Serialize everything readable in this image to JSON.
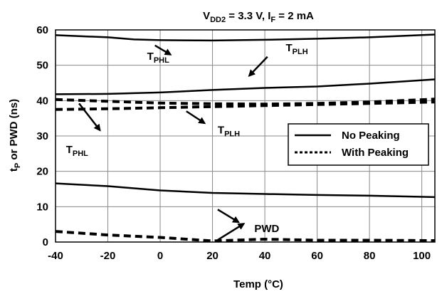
{
  "chart_data": {
    "type": "line",
    "title": {
      "main": "V",
      "sub": "DD2",
      "rest": " = 3.3 V, I",
      "sub2": "F",
      "rest2": " = 2 mA"
    },
    "xlabel": "Temp (°C)",
    "ylabel": {
      "pre": "t",
      "sub": "P",
      "rest": " or PWD (ns)"
    },
    "xlim": [
      -40,
      105
    ],
    "ylim": [
      0,
      60
    ],
    "xticks": [
      -40,
      -20,
      0,
      20,
      40,
      60,
      80,
      100
    ],
    "yticks": [
      0,
      10,
      20,
      30,
      40,
      50,
      60
    ],
    "grid": true,
    "legend": {
      "position": "right",
      "entries": [
        {
          "label": "No Peaking",
          "style": "solid"
        },
        {
          "label": "With Peaking",
          "style": "dotted"
        }
      ]
    },
    "series": [
      {
        "style": "solid",
        "x": [
          -40,
          -20,
          -10,
          0,
          20,
          40,
          60,
          80,
          105
        ],
        "y": [
          58.5,
          57.9,
          57.3,
          57.1,
          57.0,
          57.2,
          57.5,
          57.9,
          58.7
        ]
      },
      {
        "style": "solid",
        "x": [
          -40,
          -20,
          0,
          20,
          40,
          60,
          80,
          105
        ],
        "y": [
          41.8,
          41.9,
          42.3,
          43.0,
          43.6,
          44.0,
          44.8,
          46.0
        ]
      },
      {
        "style": "dashed",
        "x": [
          -40,
          -20,
          0,
          20,
          40,
          60,
          80,
          105
        ],
        "y": [
          40.3,
          39.8,
          39.3,
          39.1,
          39.0,
          39.2,
          39.6,
          40.4
        ]
      },
      {
        "style": "dashed",
        "x": [
          -40,
          -20,
          0,
          20,
          40,
          60,
          80,
          105
        ],
        "y": [
          37.5,
          37.7,
          38.0,
          38.3,
          38.6,
          38.9,
          39.2,
          39.6
        ]
      },
      {
        "style": "solid",
        "x": [
          -40,
          -20,
          0,
          20,
          40,
          60,
          80,
          105
        ],
        "y": [
          16.6,
          15.8,
          14.6,
          13.9,
          13.6,
          13.3,
          13.1,
          12.7
        ]
      },
      {
        "style": "dashed",
        "x": [
          -40,
          -20,
          0,
          20,
          40,
          60,
          80,
          105
        ],
        "y": [
          3.0,
          2.0,
          1.3,
          0.3,
          0.8,
          0.5,
          0.5,
          0.4
        ]
      }
    ],
    "annotations": [
      {
        "main": "T",
        "sub": "PHL",
        "tx": -5,
        "ty": 51.5,
        "ax": -2,
        "ay": 55.6,
        "bx": 4,
        "by": 53.0
      },
      {
        "main": "T",
        "sub": "PLH",
        "tx": 48,
        "ty": 54.0,
        "ax": 41,
        "ay": 52.4,
        "bx": 34,
        "by": 47.0
      },
      {
        "main": "T",
        "sub": "PHL",
        "tx": -36,
        "ty": 25.2,
        "ax": -31,
        "ay": 39.2,
        "bx": -23,
        "by": 31.6
      },
      {
        "main": "T",
        "sub": "PLH",
        "tx": 22,
        "ty": 30.7,
        "ax": 10,
        "ay": 37.0,
        "bx": 17,
        "by": 33.6
      },
      {
        "main": "PWD",
        "sub": "",
        "tx": 36,
        "ty": 2.8,
        "ax": 22,
        "ay": 9.2,
        "bx": 30,
        "by": 5.6
      },
      {
        "main": "",
        "sub": "",
        "tx": 0,
        "ty": 0,
        "ax": 22,
        "ay": 0.6,
        "bx": 32,
        "by": 5.2
      }
    ]
  }
}
